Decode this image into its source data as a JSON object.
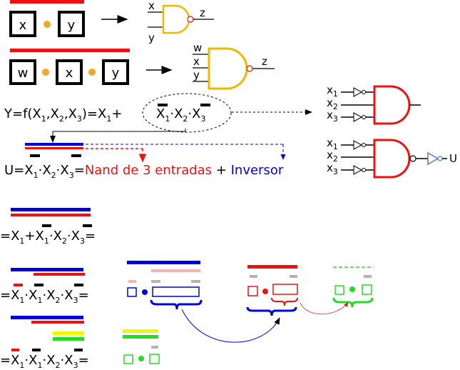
{
  "colors": {
    "red": "#ee1111",
    "blue": "#0000dd",
    "black": "#000000",
    "gold": "#f2b800",
    "orange_dot": "#f5a623",
    "pink": "#f4b3b3",
    "gray": "#b3b3b3",
    "green": "#22dd22",
    "yellow": "#f5f500",
    "inverter_blue": "#5577cc"
  },
  "row1": {
    "box_a": "x",
    "box_b": "y",
    "gate_in_top": "x",
    "gate_in_bottom": "y",
    "gate_out": "z"
  },
  "row2": {
    "box_a": "w",
    "box_b": "x",
    "box_c": "y",
    "gate_in_1": "w",
    "gate_in_2": "x",
    "gate_in_3": "y",
    "gate_out": "z"
  },
  "eq1": {
    "lhs": "Y=f(X",
    "s1": "1",
    "c1": ",X",
    "s2": "2",
    "c2": ",X",
    "s3": "3",
    "mid": ")=X",
    "s4": "1",
    "plus": "+",
    "t1": "X",
    "t1s": "1",
    "dot1": "·X",
    "t2s": "2",
    "dot2": "·X",
    "t3s": "3"
  },
  "eq2": {
    "pre": "U=X",
    "s1": "1",
    "d1": "·X",
    "s2": "2",
    "d2": "·X",
    "s3": "3",
    "eqsign": "=",
    "nand": "Nand de 3 entradas",
    "plus": " + ",
    "inv": "Inversor"
  },
  "gate_inputs": {
    "x": "x",
    "s1": "1",
    "s2": "2",
    "s3": "3"
  },
  "output_u": "U",
  "eq3": {
    "pre": "=X",
    "s1": "1",
    "plus": "+X",
    "s2": "1",
    "d1": "·X",
    "s3": "2",
    "d2": "·X",
    "s4": "3",
    "eqsign": "="
  },
  "eq4": {
    "pre": "=X",
    "s1": "1",
    "d1": "·X",
    "s2": "1",
    "d2": "·X",
    "s3": "2",
    "d3": "·X",
    "s4": "3",
    "eqsign": "="
  },
  "eq5": {
    "pre": "=X",
    "s1": "1",
    "d1": "·X",
    "s2": "1",
    "d2": "·X",
    "s3": "2",
    "d3": "·X",
    "s4": "3",
    "eqsign": "="
  }
}
